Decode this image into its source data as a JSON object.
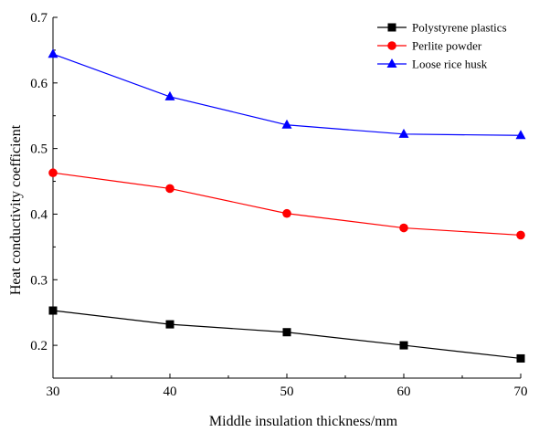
{
  "chart_data": {
    "type": "line",
    "title": "",
    "xlabel": "Middle insulation thickness/mm",
    "ylabel": "Heat conductivity coefficient",
    "x": [
      30,
      40,
      50,
      60,
      70
    ],
    "xlim": [
      30,
      70
    ],
    "ylim": [
      0.15,
      0.7
    ],
    "xticks": [
      "30",
      "40",
      "50",
      "60",
      "70"
    ],
    "yticks": [
      "0.2",
      "0.3",
      "0.4",
      "0.5",
      "0.6",
      "0.7"
    ],
    "grid": false,
    "legend_position": "top-right",
    "series": [
      {
        "name": "Polystyrene plastics",
        "values": [
          0.253,
          0.232,
          0.22,
          0.2,
          0.18
        ],
        "color": "#000000",
        "marker": "square"
      },
      {
        "name": "Perlite powder",
        "values": [
          0.463,
          0.439,
          0.401,
          0.379,
          0.368
        ],
        "color": "#ff0000",
        "marker": "circle"
      },
      {
        "name": "Loose rice husk",
        "values": [
          0.644,
          0.579,
          0.536,
          0.522,
          0.52
        ],
        "color": "#0000ff",
        "marker": "triangle"
      }
    ]
  }
}
